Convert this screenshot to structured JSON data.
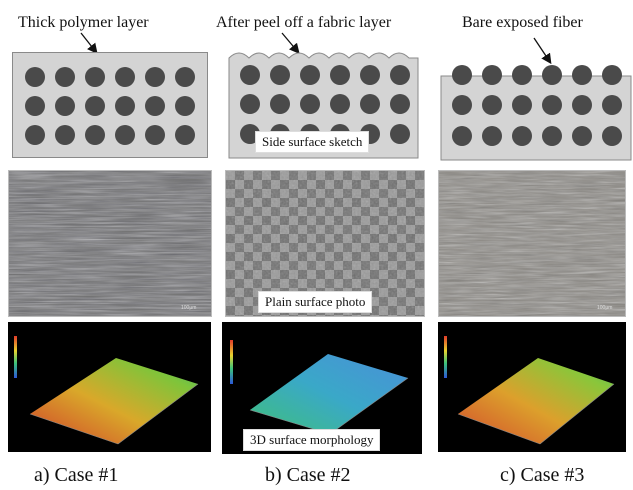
{
  "top_labels": {
    "case1": "Thick polymer layer",
    "case2": "After peel off a fabric layer",
    "case3": "Bare exposed fiber"
  },
  "row_labels": {
    "sketch": "Side surface sketch",
    "photo": "Plain surface photo",
    "morphology": "3D surface morphology"
  },
  "captions": {
    "case1": "a) Case #1",
    "case2": "b) Case #2",
    "case3": "c) Case #3"
  },
  "colors": {
    "polymer": "#d4d4d4",
    "fiber": "#4a4a4a",
    "morph_bg": "#000000"
  }
}
